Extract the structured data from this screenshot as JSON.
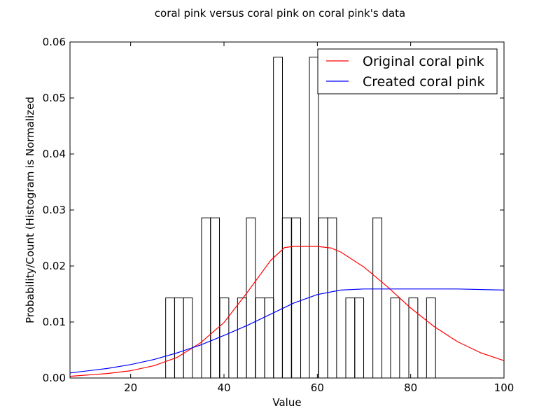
{
  "chart_data": {
    "type": "bar",
    "title": "coral pink versus coral pink on coral pink's data",
    "xlabel": "Value",
    "ylabel": "Probability/Count (Histogram is Normalized",
    "xlim": [
      7,
      100
    ],
    "ylim": [
      0,
      0.06
    ],
    "xticks": [
      20,
      40,
      60,
      80,
      100
    ],
    "xtick_labels": [
      "20",
      "40",
      "60",
      "80",
      "100"
    ],
    "yticks": [
      0,
      0.01,
      0.02,
      0.03,
      0.04,
      0.05,
      0.06
    ],
    "ytick_labels": [
      "0.00",
      "0.01",
      "0.02",
      "0.03",
      "0.04",
      "0.05",
      "0.06"
    ],
    "histogram": {
      "bin_width": 1.93,
      "bins": [
        {
          "x": 27.5,
          "value": 0.0143
        },
        {
          "x": 29.4,
          "value": 0.0143
        },
        {
          "x": 31.3,
          "value": 0.0143
        },
        {
          "x": 35.2,
          "value": 0.0286
        },
        {
          "x": 37.1,
          "value": 0.0286
        },
        {
          "x": 39.1,
          "value": 0.0143
        },
        {
          "x": 42.9,
          "value": 0.0143
        },
        {
          "x": 44.8,
          "value": 0.0286
        },
        {
          "x": 46.8,
          "value": 0.0143
        },
        {
          "x": 48.7,
          "value": 0.0143
        },
        {
          "x": 50.6,
          "value": 0.0573
        },
        {
          "x": 52.5,
          "value": 0.0286
        },
        {
          "x": 54.5,
          "value": 0.0286
        },
        {
          "x": 58.3,
          "value": 0.0573
        },
        {
          "x": 60.3,
          "value": 0.0286
        },
        {
          "x": 62.2,
          "value": 0.0286
        },
        {
          "x": 66.1,
          "value": 0.0143
        },
        {
          "x": 68.0,
          "value": 0.0143
        },
        {
          "x": 71.9,
          "value": 0.0286
        },
        {
          "x": 75.7,
          "value": 0.0143
        },
        {
          "x": 79.6,
          "value": 0.0143
        },
        {
          "x": 83.4,
          "value": 0.0143
        }
      ]
    },
    "series": [
      {
        "name": "Original coral pink",
        "color": "#ff0000",
        "x": [
          7,
          15,
          20,
          25,
          30,
          35,
          40,
          45,
          50,
          53,
          55,
          60,
          63,
          65,
          70,
          75,
          80,
          85,
          90,
          95,
          100
        ],
        "y": [
          0.0003,
          0.0008,
          0.0013,
          0.0022,
          0.0037,
          0.0063,
          0.0099,
          0.0153,
          0.021,
          0.0233,
          0.0235,
          0.0235,
          0.0232,
          0.0225,
          0.0198,
          0.0163,
          0.0125,
          0.0092,
          0.0065,
          0.0045,
          0.0031
        ]
      },
      {
        "name": "Created coral pink",
        "color": "#0000ff",
        "x": [
          7,
          15,
          20,
          25,
          30,
          35,
          40,
          45,
          50,
          55,
          60,
          65,
          70,
          80,
          90,
          100
        ],
        "y": [
          0.0009,
          0.0017,
          0.0024,
          0.0033,
          0.0045,
          0.0059,
          0.0076,
          0.0094,
          0.0114,
          0.0134,
          0.0149,
          0.0157,
          0.0159,
          0.0159,
          0.0159,
          0.0157
        ]
      }
    ],
    "legend": {
      "position": "top-right"
    },
    "grid": false
  }
}
